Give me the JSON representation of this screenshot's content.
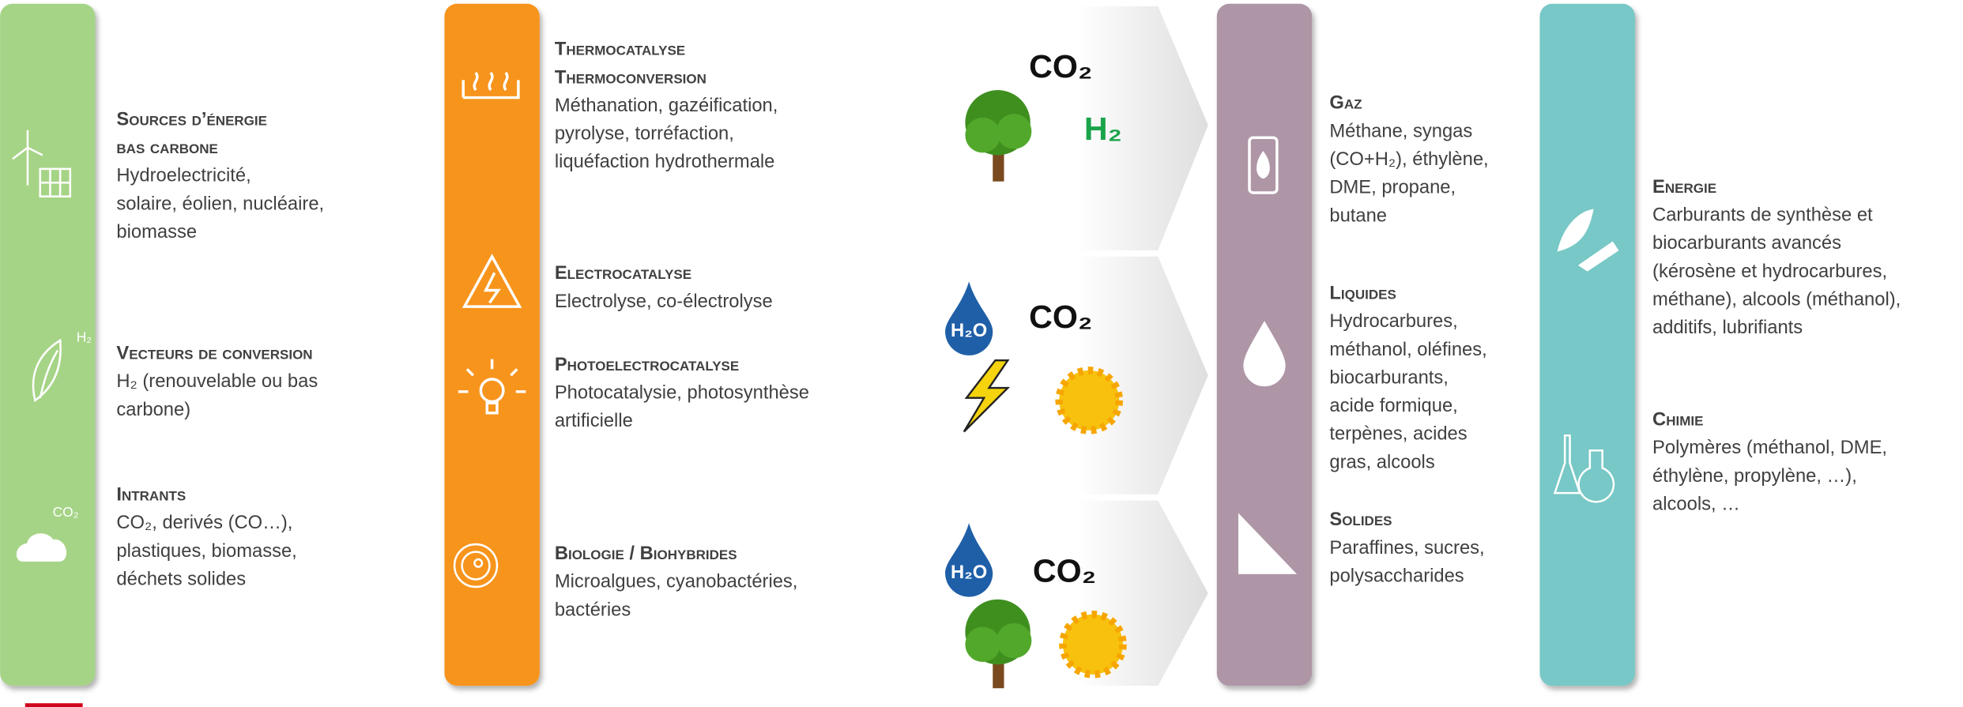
{
  "columns": [
    {
      "icons": [
        "H₂",
        "CO₂"
      ],
      "blocks": [
        {
          "title": [
            "Sources d’énergie",
            "bas carbone"
          ],
          "lines": [
            "Hydroelectricité,",
            "solaire, éolien, nucléaire,",
            "biomasse"
          ]
        },
        {
          "title": [
            "Vecteurs de conversion"
          ],
          "lines": [
            "H₂ (renouvelable ou bas",
            "carbone)"
          ]
        },
        {
          "title": [
            "Intrants"
          ],
          "lines": [
            "CO₂, derivés (CO…),",
            "plastiques, biomasse,",
            "déchets solides"
          ]
        }
      ]
    },
    {
      "blocks": [
        {
          "title": [
            "Thermocatalyse",
            "Thermoconversion"
          ],
          "lines": [
            "Méthanation, gazéification,",
            "pyrolyse, torréfaction,",
            "liquéfaction hydrothermale"
          ]
        },
        {
          "title": [
            "Electrocatalyse"
          ],
          "lines": [
            "Electrolyse, co-électrolyse"
          ]
        },
        {
          "title": [
            "Photoelectrocatalyse"
          ],
          "lines": [
            "Photocatalysie, photosynthèse",
            "artificielle"
          ]
        },
        {
          "title": [
            "Biologie / Biohybrides"
          ],
          "lines": [
            "Microalgues, cyanobactéries,",
            "bactéries"
          ]
        }
      ]
    },
    {
      "blocks": [
        {
          "title": [
            "Gaz"
          ],
          "lines": [
            "Méthane, syngas",
            "(CO+H₂), éthylène,",
            "DME, propane,",
            "butane"
          ]
        },
        {
          "title": [
            "Liquides"
          ],
          "lines": [
            "Hydrocarbures,",
            "méthanol, oléfines,",
            "biocarburants,",
            "acide formique,",
            "terpènes, acides",
            "gras, alcools"
          ]
        },
        {
          "title": [
            "Solides"
          ],
          "lines": [
            "Paraffines, sucres,",
            "polysaccharides"
          ]
        }
      ]
    },
    {
      "blocks": [
        {
          "title": [
            "Energie"
          ],
          "lines": [
            "Carburants de synthèse et",
            "biocarburants avancés",
            "(kérosène et hydrocarbures,",
            "méthane), alcools (méthanol),",
            "additifs, lubrifiants"
          ]
        },
        {
          "title": [
            "Chimie"
          ],
          "lines": [
            "Polymères (méthanol, DME,",
            "éthylène, propylène, …),",
            "alcools, …"
          ]
        }
      ]
    }
  ],
  "inputs": [
    [
      "CO₂",
      "H₂"
    ],
    [
      "H₂O",
      "CO₂"
    ],
    [
      "H₂O",
      "CO₂"
    ]
  ]
}
